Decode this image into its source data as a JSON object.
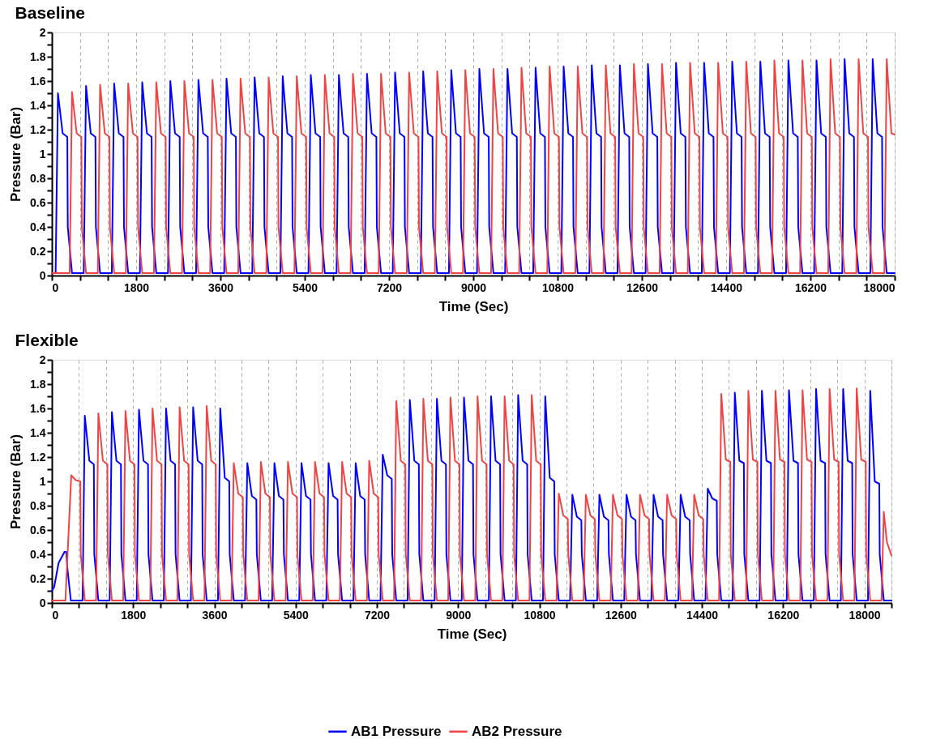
{
  "chart_data": [
    {
      "type": "line",
      "title": "Baseline",
      "xlabel": "Time (Sec)",
      "ylabel": "Pressure (Bar)",
      "xlim": [
        0,
        18000
      ],
      "xticks": [
        0,
        {
          "value": 600,
          "label": null
        },
        {
          "value": 1200,
          "label": null
        },
        1800,
        {
          "value": 2400,
          "label": null
        },
        {
          "value": 3000,
          "label": null
        },
        3600,
        {
          "value": 4200,
          "label": null
        },
        {
          "value": 4800,
          "label": null
        },
        5400,
        {
          "value": 6000,
          "label": null
        },
        {
          "value": 6600,
          "label": null
        },
        7200,
        {
          "value": 7800,
          "label": null
        },
        {
          "value": 8400,
          "label": null
        },
        9000,
        {
          "value": 9600,
          "label": null
        },
        {
          "value": 10200,
          "label": null
        },
        10800,
        {
          "value": 11400,
          "label": null
        },
        {
          "value": 12000,
          "label": null
        },
        12600,
        {
          "value": 13200,
          "label": null
        },
        {
          "value": 13800,
          "label": null
        },
        14400,
        {
          "value": 15000,
          "label": null
        },
        {
          "value": 15600,
          "label": null
        },
        16200,
        {
          "value": 16800,
          "label": null
        },
        {
          "value": 17400,
          "label": null
        },
        18000
      ],
      "ylim": [
        0,
        2
      ],
      "yticks": [
        0,
        {
          "value": 0.1,
          "label": null
        },
        0.2,
        {
          "value": 0.3,
          "label": null
        },
        0.4,
        {
          "value": 0.5,
          "label": null
        },
        0.6,
        {
          "value": 0.7,
          "label": null
        },
        0.8,
        {
          "value": 0.9,
          "label": null
        },
        1,
        {
          "value": 1.1,
          "label": null
        },
        1.2,
        {
          "value": 1.3,
          "label": null
        },
        1.4,
        {
          "value": 1.5,
          "label": null
        },
        1.6,
        {
          "value": 1.7,
          "label": null
        },
        1.8,
        {
          "value": 1.9,
          "label": null
        },
        2
      ],
      "grid": "x",
      "legend": "bottom",
      "series": [
        {
          "name": "AB1 Pressure",
          "color": "#0000ff",
          "line_style": "solid",
          "x": [
            0,
            80,
            130,
            230,
            330,
            340,
            430,
            680,
            730,
            830,
            930,
            940,
            1030,
            1280,
            1330,
            1430,
            1530,
            1540,
            1630,
            1880,
            1930,
            2030,
            2130,
            2140,
            2230,
            2480,
            2530,
            2630,
            2730,
            2740,
            2830,
            3080,
            3130,
            3230,
            3330,
            3340,
            3430,
            3680,
            3730,
            3830,
            3930,
            3940,
            4030,
            4280,
            4330,
            4430,
            4530,
            4540,
            4630,
            4880,
            4930,
            5030,
            5130,
            5140,
            5230,
            5480,
            5530,
            5630,
            5730,
            5740,
            5830,
            6080,
            6130,
            6230,
            6330,
            6340,
            6430,
            6680,
            6730,
            6830,
            6930,
            6940,
            7030,
            7280,
            7330,
            7430,
            7530,
            7540,
            7630,
            7880,
            7930,
            8030,
            8130,
            8140,
            8230,
            8480,
            8530,
            8630,
            8730,
            8740,
            8830,
            9080,
            9130,
            9230,
            9330,
            9340,
            9430,
            9680,
            9730,
            9830,
            9930,
            9940,
            10030,
            10280,
            10330,
            10430,
            10530,
            10540,
            10630,
            10880,
            10930,
            11030,
            11130,
            11140,
            11230,
            11480,
            11530,
            11630,
            11730,
            11740,
            11830,
            12080,
            12130,
            12230,
            12330,
            12340,
            12430,
            12680,
            12730,
            12830,
            12930,
            12940,
            13030,
            13280,
            13330,
            13430,
            13530,
            13540,
            13630,
            13880,
            13930,
            14030,
            14130,
            14140,
            14230,
            14480,
            14530,
            14630,
            14730,
            14740,
            14830,
            15080,
            15130,
            15230,
            15330,
            15340,
            15430,
            15680,
            15730,
            15830,
            15930,
            15940,
            16030,
            16280,
            16330,
            16430,
            16530,
            16540,
            16630,
            16880,
            16930,
            17030,
            17130,
            17140,
            17230,
            17480,
            17530,
            17630,
            17730,
            17740,
            17830,
            18000
          ],
          "values": [
            0.02,
            0.02,
            1.5,
            1.17,
            1.14,
            0.4,
            0.02,
            0.02,
            1.56,
            1.17,
            1.14,
            0.4,
            0.02,
            0.02,
            1.58,
            1.17,
            1.14,
            0.4,
            0.02,
            0.02,
            1.59,
            1.17,
            1.14,
            0.4,
            0.02,
            0.02,
            1.6,
            1.17,
            1.14,
            0.4,
            0.02,
            0.02,
            1.61,
            1.17,
            1.14,
            0.4,
            0.02,
            0.02,
            1.62,
            1.17,
            1.14,
            0.4,
            0.02,
            0.02,
            1.63,
            1.17,
            1.14,
            0.4,
            0.02,
            0.02,
            1.64,
            1.17,
            1.14,
            0.4,
            0.02,
            0.02,
            1.65,
            1.17,
            1.14,
            0.4,
            0.02,
            0.02,
            1.65,
            1.17,
            1.14,
            0.4,
            0.02,
            0.02,
            1.66,
            1.17,
            1.14,
            0.4,
            0.02,
            0.02,
            1.67,
            1.17,
            1.14,
            0.4,
            0.02,
            0.02,
            1.68,
            1.17,
            1.14,
            0.4,
            0.02,
            0.02,
            1.69,
            1.17,
            1.14,
            0.4,
            0.02,
            0.02,
            1.7,
            1.17,
            1.14,
            0.4,
            0.02,
            0.02,
            1.7,
            1.17,
            1.14,
            0.4,
            0.02,
            0.02,
            1.71,
            1.17,
            1.14,
            0.4,
            0.02,
            0.02,
            1.72,
            1.17,
            1.14,
            0.4,
            0.02,
            0.02,
            1.73,
            1.17,
            1.14,
            0.4,
            0.02,
            0.02,
            1.73,
            1.17,
            1.14,
            0.4,
            0.02,
            0.02,
            1.74,
            1.17,
            1.14,
            0.4,
            0.02,
            0.02,
            1.75,
            1.17,
            1.14,
            0.4,
            0.02,
            0.02,
            1.75,
            1.17,
            1.14,
            0.4,
            0.02,
            0.02,
            1.76,
            1.17,
            1.14,
            0.4,
            0.02,
            0.02,
            1.76,
            1.17,
            1.14,
            0.4,
            0.02,
            0.02,
            1.77,
            1.17,
            1.14,
            0.4,
            0.02,
            0.02,
            1.77,
            1.17,
            1.14,
            0.4,
            0.02,
            0.02,
            1.78,
            1.17,
            1.14,
            0.4,
            0.02,
            0.02,
            1.78,
            1.17,
            1.14,
            0.4,
            0.02,
            0.02
          ]
        },
        {
          "name": "AB2 Pressure",
          "color": "#ef4444",
          "line_style": "solid",
          "x": [
            0,
            380,
            430,
            530,
            630,
            640,
            730,
            980,
            1030,
            1130,
            1230,
            1240,
            1330,
            1580,
            1630,
            1730,
            1830,
            1840,
            1930,
            2180,
            2230,
            2330,
            2430,
            2440,
            2530,
            2780,
            2830,
            2930,
            3030,
            3040,
            3130,
            3380,
            3430,
            3530,
            3630,
            3640,
            3730,
            3980,
            4030,
            4130,
            4230,
            4240,
            4330,
            4580,
            4630,
            4730,
            4830,
            4840,
            4930,
            5180,
            5230,
            5330,
            5430,
            5440,
            5530,
            5780,
            5830,
            5930,
            6030,
            6040,
            6130,
            6380,
            6430,
            6530,
            6630,
            6640,
            6730,
            6980,
            7030,
            7130,
            7230,
            7240,
            7330,
            7580,
            7630,
            7730,
            7830,
            7840,
            7930,
            8180,
            8230,
            8330,
            8430,
            8440,
            8530,
            8780,
            8830,
            8930,
            9030,
            9040,
            9130,
            9380,
            9430,
            9530,
            9630,
            9640,
            9730,
            9980,
            10030,
            10130,
            10230,
            10240,
            10330,
            10580,
            10630,
            10730,
            10830,
            10840,
            10930,
            11180,
            11230,
            11330,
            11430,
            11440,
            11530,
            11780,
            11830,
            11930,
            12030,
            12040,
            12130,
            12380,
            12430,
            12530,
            12630,
            12640,
            12730,
            12980,
            13030,
            13130,
            13230,
            13240,
            13330,
            13580,
            13630,
            13730,
            13830,
            13840,
            13930,
            14180,
            14230,
            14330,
            14430,
            14440,
            14530,
            14780,
            14830,
            14930,
            15030,
            15040,
            15130,
            15380,
            15430,
            15530,
            15630,
            15640,
            15730,
            15980,
            16030,
            16130,
            16230,
            16240,
            16330,
            16580,
            16630,
            16730,
            16830,
            16840,
            16930,
            17180,
            17230,
            17330,
            17430,
            17440,
            17530,
            17780,
            17830,
            17930,
            18000
          ],
          "values": [
            0.02,
            0.02,
            1.51,
            1.17,
            1.14,
            0.4,
            0.02,
            0.02,
            1.57,
            1.17,
            1.14,
            0.4,
            0.02,
            0.02,
            1.58,
            1.17,
            1.14,
            0.4,
            0.02,
            0.02,
            1.59,
            1.17,
            1.14,
            0.4,
            0.02,
            0.02,
            1.6,
            1.17,
            1.14,
            0.4,
            0.02,
            0.02,
            1.61,
            1.17,
            1.14,
            0.4,
            0.02,
            0.02,
            1.62,
            1.17,
            1.14,
            0.4,
            0.02,
            0.02,
            1.63,
            1.17,
            1.14,
            0.4,
            0.02,
            0.02,
            1.64,
            1.17,
            1.14,
            0.4,
            0.02,
            0.02,
            1.65,
            1.17,
            1.14,
            0.4,
            0.02,
            0.02,
            1.66,
            1.17,
            1.14,
            0.4,
            0.02,
            0.02,
            1.66,
            1.17,
            1.14,
            0.4,
            0.02,
            0.02,
            1.67,
            1.17,
            1.14,
            0.4,
            0.02,
            0.02,
            1.68,
            1.17,
            1.14,
            0.4,
            0.02,
            0.02,
            1.69,
            1.17,
            1.14,
            0.4,
            0.02,
            0.02,
            1.7,
            1.17,
            1.14,
            0.4,
            0.02,
            0.02,
            1.71,
            1.17,
            1.14,
            0.4,
            0.02,
            0.02,
            1.72,
            1.17,
            1.14,
            0.4,
            0.02,
            0.02,
            1.72,
            1.17,
            1.14,
            0.4,
            0.02,
            0.02,
            1.73,
            1.17,
            1.14,
            0.4,
            0.02,
            0.02,
            1.74,
            1.17,
            1.14,
            0.4,
            0.02,
            0.02,
            1.74,
            1.17,
            1.14,
            0.4,
            0.02,
            0.02,
            1.75,
            1.17,
            1.14,
            0.4,
            0.02,
            0.02,
            1.75,
            1.17,
            1.14,
            0.4,
            0.02,
            0.02,
            1.76,
            1.17,
            1.14,
            0.4,
            0.02,
            0.02,
            1.77,
            1.17,
            1.14,
            0.4,
            0.02,
            0.02,
            1.77,
            1.17,
            1.14,
            0.4,
            0.02,
            0.02,
            1.78,
            1.17,
            1.14,
            0.4,
            0.02,
            0.02,
            1.78,
            1.17,
            1.14,
            0.4,
            0.02,
            0.02,
            1.78,
            1.17,
            1.16
          ]
        }
      ]
    },
    {
      "type": "line",
      "title": "Flexible",
      "xlabel": "Time (Sec)",
      "ylabel": "Pressure (Bar)",
      "xlim": [
        0,
        18600
      ],
      "xticks": [
        0,
        {
          "value": 600,
          "label": null
        },
        {
          "value": 1200,
          "label": null
        },
        1800,
        {
          "value": 2400,
          "label": null
        },
        {
          "value": 3000,
          "label": null
        },
        3600,
        {
          "value": 4200,
          "label": null
        },
        {
          "value": 4800,
          "label": null
        },
        5400,
        {
          "value": 6000,
          "label": null
        },
        {
          "value": 6600,
          "label": null
        },
        7200,
        {
          "value": 7800,
          "label": null
        },
        {
          "value": 8400,
          "label": null
        },
        9000,
        {
          "value": 9600,
          "label": null
        },
        {
          "value": 10200,
          "label": null
        },
        10800,
        {
          "value": 11400,
          "label": null
        },
        {
          "value": 12000,
          "label": null
        },
        12600,
        {
          "value": 13200,
          "label": null
        },
        {
          "value": 13800,
          "label": null
        },
        14400,
        {
          "value": 15000,
          "label": null
        },
        {
          "value": 15600,
          "label": null
        },
        16200,
        {
          "value": 16800,
          "label": null
        },
        {
          "value": 17400,
          "label": null
        },
        18000,
        {
          "value": 18600,
          "label": null
        }
      ],
      "ylim": [
        0,
        2
      ],
      "yticks": [
        0,
        {
          "value": 0.1,
          "label": null
        },
        0.2,
        {
          "value": 0.3,
          "label": null
        },
        0.4,
        {
          "value": 0.5,
          "label": null
        },
        0.6,
        {
          "value": 0.7,
          "label": null
        },
        0.8,
        {
          "value": 0.9,
          "label": null
        },
        1,
        {
          "value": 1.1,
          "label": null
        },
        1.2,
        {
          "value": 1.3,
          "label": null
        },
        1.4,
        {
          "value": 1.5,
          "label": null
        },
        1.6,
        {
          "value": 1.7,
          "label": null
        },
        1.8,
        {
          "value": 1.9,
          "label": null
        },
        2
      ],
      "grid": "x",
      "legend": "bottom",
      "series": [
        {
          "name": "AB1 Pressure",
          "color": "#0000ff",
          "line_style": "solid",
          "x": [
            0,
            50,
            150,
            280,
            320,
            340,
            420,
            680,
            730,
            830,
            930,
            940,
            1030,
            1280,
            1330,
            1430,
            1530,
            1540,
            1630,
            1880,
            1930,
            2030,
            2130,
            2140,
            2230,
            2480,
            2530,
            2630,
            2730,
            2740,
            2830,
            3080,
            3130,
            3230,
            3330,
            3340,
            3430,
            3680,
            3730,
            3830,
            3930,
            3940,
            4030,
            4280,
            4330,
            4430,
            4530,
            4540,
            4630,
            4880,
            4930,
            5030,
            5130,
            5140,
            5230,
            5480,
            5530,
            5630,
            5730,
            5740,
            5830,
            6080,
            6130,
            6230,
            6330,
            6340,
            6430,
            6680,
            6730,
            6830,
            6930,
            6940,
            7030,
            7280,
            7330,
            7430,
            7530,
            7540,
            7630,
            7880,
            7930,
            8030,
            8130,
            8140,
            8230,
            8480,
            8530,
            8630,
            8730,
            8740,
            8830,
            9080,
            9130,
            9230,
            9330,
            9340,
            9430,
            9680,
            9730,
            9830,
            9930,
            9940,
            10030,
            10280,
            10330,
            10430,
            10530,
            10540,
            10630,
            10880,
            10930,
            11030,
            11130,
            11140,
            11230,
            11480,
            11530,
            11630,
            11730,
            11740,
            11830,
            12080,
            12130,
            12230,
            12330,
            12340,
            12430,
            12680,
            12730,
            12830,
            12930,
            12940,
            13030,
            13280,
            13330,
            13430,
            13530,
            13540,
            13630,
            13880,
            13930,
            14030,
            14130,
            14140,
            14230,
            14480,
            14530,
            14630,
            14730,
            14740,
            14830,
            15080,
            15130,
            15230,
            15330,
            15340,
            15430,
            15680,
            15730,
            15830,
            15930,
            15940,
            16030,
            16280,
            16330,
            16430,
            16530,
            16540,
            16630,
            16880,
            16930,
            17030,
            17130,
            17140,
            17230,
            17480,
            17530,
            17630,
            17730,
            17740,
            17830,
            18080,
            18130,
            18230,
            18330,
            18340,
            18430,
            18600
          ],
          "values": [
            0.1,
            0.13,
            0.33,
            0.42,
            0.42,
            0.3,
            0.02,
            0.02,
            1.54,
            1.17,
            1.14,
            0.4,
            0.02,
            0.02,
            1.57,
            1.17,
            1.14,
            0.4,
            0.02,
            0.02,
            1.59,
            1.17,
            1.14,
            0.4,
            0.02,
            0.02,
            1.6,
            1.17,
            1.14,
            0.4,
            0.02,
            0.02,
            1.61,
            1.17,
            1.14,
            0.4,
            0.02,
            0.02,
            1.6,
            1.03,
            1.0,
            0.4,
            0.02,
            0.02,
            1.15,
            0.88,
            0.85,
            0.4,
            0.02,
            0.02,
            1.15,
            0.88,
            0.85,
            0.4,
            0.02,
            0.02,
            1.15,
            0.88,
            0.85,
            0.4,
            0.02,
            0.02,
            1.15,
            0.88,
            0.85,
            0.4,
            0.02,
            0.02,
            1.15,
            0.88,
            0.85,
            0.4,
            0.02,
            0.02,
            1.22,
            1.05,
            1.02,
            0.4,
            0.02,
            0.02,
            1.67,
            1.17,
            1.14,
            0.4,
            0.02,
            0.02,
            1.68,
            1.17,
            1.14,
            0.4,
            0.02,
            0.02,
            1.69,
            1.17,
            1.14,
            0.4,
            0.02,
            0.02,
            1.7,
            1.17,
            1.14,
            0.4,
            0.02,
            0.02,
            1.71,
            1.17,
            1.14,
            0.4,
            0.02,
            0.02,
            1.7,
            1.03,
            1.0,
            0.4,
            0.02,
            0.02,
            0.89,
            0.71,
            0.68,
            0.4,
            0.02,
            0.02,
            0.89,
            0.71,
            0.68,
            0.4,
            0.02,
            0.02,
            0.89,
            0.71,
            0.68,
            0.4,
            0.02,
            0.02,
            0.89,
            0.71,
            0.68,
            0.4,
            0.02,
            0.02,
            0.89,
            0.71,
            0.68,
            0.4,
            0.02,
            0.02,
            0.94,
            0.86,
            0.84,
            0.4,
            0.02,
            0.02,
            1.73,
            1.17,
            1.15,
            0.4,
            0.02,
            0.02,
            1.745,
            1.17,
            1.15,
            0.4,
            0.02,
            0.02,
            1.75,
            1.17,
            1.15,
            0.4,
            0.02,
            0.02,
            1.76,
            1.17,
            1.15,
            0.4,
            0.02,
            0.02,
            1.76,
            1.17,
            1.15,
            0.4,
            0.02,
            0.02,
            1.745,
            1.0,
            0.98,
            0.4,
            0.02,
            0.02
          ]
        },
        {
          "name": "AB2 Pressure",
          "color": "#ef4444",
          "line_style": "solid",
          "x": [
            0,
            300,
            430,
            530,
            630,
            640,
            730,
            980,
            1030,
            1130,
            1230,
            1240,
            1330,
            1580,
            1630,
            1730,
            1830,
            1840,
            1930,
            2180,
            2230,
            2330,
            2430,
            2440,
            2530,
            2780,
            2830,
            2930,
            3030,
            3040,
            3130,
            3380,
            3430,
            3530,
            3630,
            3640,
            3730,
            3980,
            4030,
            4130,
            4230,
            4240,
            4330,
            4580,
            4630,
            4730,
            4830,
            4840,
            4930,
            5180,
            5230,
            5330,
            5430,
            5440,
            5530,
            5780,
            5830,
            5930,
            6030,
            6040,
            6130,
            6380,
            6430,
            6530,
            6630,
            6640,
            6730,
            6980,
            7030,
            7130,
            7230,
            7240,
            7330,
            7580,
            7630,
            7730,
            7830,
            7840,
            7930,
            8180,
            8230,
            8330,
            8430,
            8440,
            8530,
            8780,
            8830,
            8930,
            9030,
            9040,
            9130,
            9380,
            9430,
            9530,
            9630,
            9640,
            9730,
            9980,
            10030,
            10130,
            10230,
            10240,
            10330,
            10580,
            10630,
            10730,
            10830,
            10840,
            10930,
            11180,
            11230,
            11330,
            11430,
            11440,
            11530,
            11780,
            11830,
            11930,
            12030,
            12040,
            12130,
            12380,
            12430,
            12530,
            12630,
            12640,
            12730,
            12980,
            13030,
            13130,
            13230,
            13240,
            13330,
            13580,
            13630,
            13730,
            13830,
            13840,
            13930,
            14180,
            14230,
            14330,
            14430,
            14440,
            14530,
            14780,
            14830,
            14930,
            15030,
            15040,
            15130,
            15380,
            15430,
            15530,
            15630,
            15640,
            15730,
            15980,
            16030,
            16130,
            16230,
            16240,
            16330,
            16580,
            16630,
            16730,
            16830,
            16840,
            16930,
            17180,
            17230,
            17330,
            17430,
            17440,
            17530,
            17780,
            17830,
            17930,
            18030,
            18040,
            18130,
            18380,
            18430,
            18500,
            18600
          ],
          "values": [
            0.02,
            0.02,
            1.05,
            1.01,
            1.0,
            0.4,
            0.02,
            0.02,
            1.56,
            1.17,
            1.14,
            0.4,
            0.02,
            0.02,
            1.58,
            1.17,
            1.14,
            0.4,
            0.02,
            0.02,
            1.6,
            1.17,
            1.14,
            0.4,
            0.02,
            0.02,
            1.61,
            1.17,
            1.14,
            0.4,
            0.02,
            0.02,
            1.62,
            1.17,
            1.14,
            0.4,
            0.02,
            0.02,
            1.15,
            0.9,
            0.87,
            0.4,
            0.02,
            0.02,
            1.16,
            0.9,
            0.87,
            0.4,
            0.02,
            0.02,
            1.16,
            0.9,
            0.87,
            0.4,
            0.02,
            0.02,
            1.16,
            0.9,
            0.87,
            0.4,
            0.02,
            0.02,
            1.16,
            0.9,
            0.87,
            0.4,
            0.02,
            0.02,
            1.17,
            0.9,
            0.87,
            0.4,
            0.02,
            0.02,
            1.66,
            1.17,
            1.14,
            0.4,
            0.02,
            0.02,
            1.68,
            1.17,
            1.14,
            0.4,
            0.02,
            0.02,
            1.69,
            1.17,
            1.14,
            0.4,
            0.02,
            0.02,
            1.7,
            1.17,
            1.14,
            0.4,
            0.02,
            0.02,
            1.7,
            1.17,
            1.14,
            0.4,
            0.02,
            0.02,
            1.71,
            1.17,
            1.14,
            0.4,
            0.02,
            0.02,
            0.9,
            0.72,
            0.69,
            0.4,
            0.02,
            0.02,
            0.89,
            0.72,
            0.69,
            0.4,
            0.02,
            0.02,
            0.89,
            0.72,
            0.69,
            0.4,
            0.02,
            0.02,
            0.89,
            0.72,
            0.69,
            0.4,
            0.02,
            0.02,
            0.89,
            0.72,
            0.69,
            0.4,
            0.02,
            0.02,
            0.89,
            0.72,
            0.69,
            0.4,
            0.02,
            0.02,
            1.72,
            1.18,
            1.16,
            0.4,
            0.02,
            0.02,
            1.745,
            1.18,
            1.16,
            0.4,
            0.02,
            0.02,
            1.745,
            1.18,
            1.16,
            0.4,
            0.02,
            0.02,
            1.75,
            1.18,
            1.16,
            0.4,
            0.02,
            0.02,
            1.76,
            1.18,
            1.16,
            0.4,
            0.02,
            0.02,
            1.765,
            1.18,
            1.16,
            0.4,
            0.02,
            0.02,
            0.75,
            0.5,
            0.39
          ]
        }
      ]
    }
  ]
}
